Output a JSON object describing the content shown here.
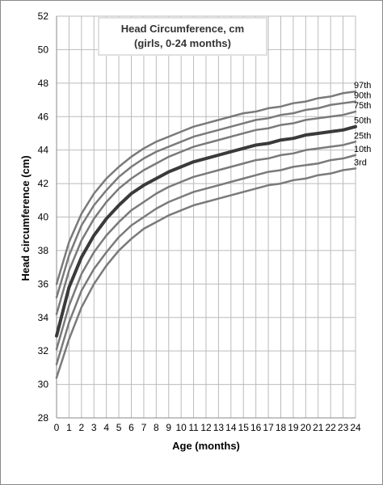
{
  "chart_data": {
    "type": "line",
    "title": "Head Circumference, cm",
    "subtitle": "(girls, 0-24 months)",
    "xlabel": "Age (months)",
    "ylabel": "Head circumference (cm)",
    "xlim": [
      0,
      24
    ],
    "ylim": [
      28,
      52
    ],
    "x_ticks": [
      0,
      1,
      2,
      3,
      4,
      5,
      6,
      7,
      8,
      9,
      10,
      11,
      12,
      13,
      14,
      15,
      16,
      17,
      18,
      19,
      20,
      21,
      22,
      23,
      24
    ],
    "y_ticks": [
      28,
      30,
      32,
      34,
      36,
      38,
      40,
      42,
      44,
      46,
      48,
      50,
      52
    ],
    "grid": true,
    "x": [
      0,
      1,
      2,
      3,
      4,
      5,
      6,
      7,
      8,
      9,
      10,
      11,
      12,
      13,
      14,
      15,
      16,
      17,
      18,
      19,
      20,
      21,
      22,
      23,
      24
    ],
    "series": [
      {
        "name": "97th",
        "emphasis": false,
        "values": [
          36.0,
          38.5,
          40.2,
          41.4,
          42.3,
          43.0,
          43.6,
          44.1,
          44.5,
          44.8,
          45.1,
          45.4,
          45.6,
          45.8,
          46.0,
          46.2,
          46.3,
          46.5,
          46.6,
          46.8,
          46.9,
          47.1,
          47.2,
          47.4,
          47.5
        ]
      },
      {
        "name": "90th",
        "emphasis": false,
        "values": [
          35.2,
          37.7,
          39.5,
          40.7,
          41.6,
          42.4,
          43.0,
          43.5,
          43.9,
          44.2,
          44.5,
          44.8,
          45.0,
          45.2,
          45.4,
          45.6,
          45.8,
          45.9,
          46.1,
          46.2,
          46.4,
          46.5,
          46.7,
          46.8,
          46.9
        ]
      },
      {
        "name": "75th",
        "emphasis": false,
        "values": [
          34.2,
          36.8,
          38.6,
          39.9,
          40.9,
          41.7,
          42.3,
          42.8,
          43.2,
          43.6,
          43.9,
          44.2,
          44.4,
          44.6,
          44.8,
          45.0,
          45.2,
          45.3,
          45.5,
          45.6,
          45.8,
          45.9,
          46.0,
          46.1,
          46.3
        ]
      },
      {
        "name": "50th",
        "emphasis": true,
        "values": [
          32.9,
          35.8,
          37.6,
          38.9,
          39.9,
          40.7,
          41.4,
          41.9,
          42.3,
          42.7,
          43.0,
          43.3,
          43.5,
          43.7,
          43.9,
          44.1,
          44.3,
          44.4,
          44.6,
          44.7,
          44.9,
          45.0,
          45.1,
          45.2,
          45.4
        ]
      },
      {
        "name": "25th",
        "emphasis": false,
        "values": [
          32.1,
          34.7,
          36.6,
          37.9,
          38.9,
          39.7,
          40.4,
          40.9,
          41.4,
          41.8,
          42.1,
          42.4,
          42.6,
          42.8,
          43.0,
          43.2,
          43.4,
          43.5,
          43.7,
          43.8,
          44.0,
          44.1,
          44.2,
          44.3,
          44.5
        ]
      },
      {
        "name": "10th",
        "emphasis": false,
        "values": [
          31.2,
          33.7,
          35.6,
          36.9,
          37.9,
          38.8,
          39.5,
          40.0,
          40.5,
          40.9,
          41.2,
          41.5,
          41.7,
          41.9,
          42.1,
          42.3,
          42.5,
          42.7,
          42.8,
          43.0,
          43.1,
          43.2,
          43.4,
          43.5,
          43.7
        ]
      },
      {
        "name": "3rd",
        "emphasis": false,
        "values": [
          30.4,
          32.7,
          34.6,
          36.0,
          37.1,
          38.0,
          38.7,
          39.3,
          39.7,
          40.1,
          40.4,
          40.7,
          40.9,
          41.1,
          41.3,
          41.5,
          41.7,
          41.9,
          42.0,
          42.2,
          42.3,
          42.5,
          42.6,
          42.8,
          42.9
        ]
      }
    ],
    "colors": {
      "line": "#7a7a7a",
      "emphasis": "#3a3a3a",
      "grid": "#bbbbbb",
      "title_box": "#e0e0e0"
    }
  }
}
